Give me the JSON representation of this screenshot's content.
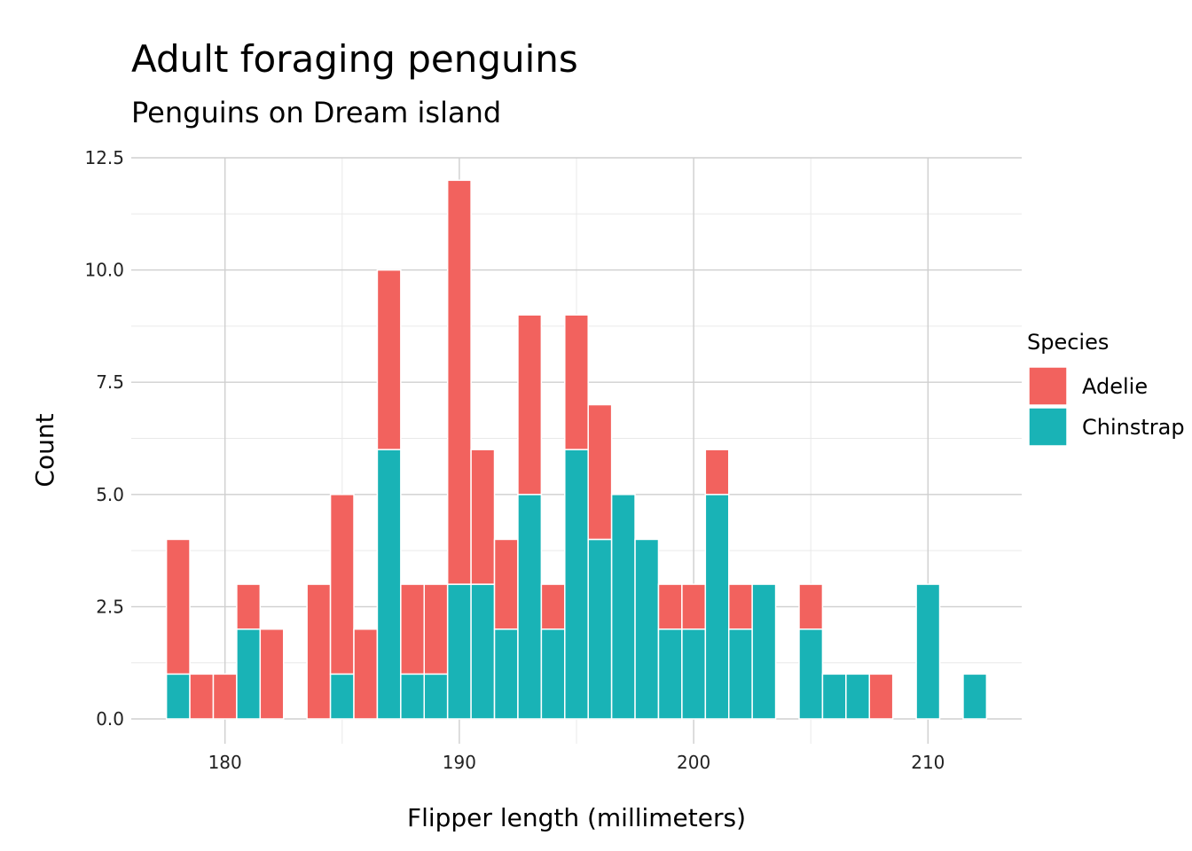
{
  "chart_data": {
    "type": "bar",
    "stacked": true,
    "title": "Adult foraging penguins",
    "subtitle": "Penguins on Dream island",
    "xlabel": "Flipper length (millimeters)",
    "ylabel": "Count",
    "xlim": [
      176,
      214
    ],
    "ylim": [
      0,
      12.5
    ],
    "x_ticks": [
      180,
      190,
      200,
      210
    ],
    "x_tick_labels": [
      "180",
      "190",
      "200",
      "210"
    ],
    "y_ticks": [
      0,
      2.5,
      5,
      7.5,
      10,
      12.5
    ],
    "y_tick_labels": [
      "0.0",
      "2.5",
      "5.0",
      "7.5",
      "10.0",
      "12.5"
    ],
    "grid": true,
    "legend": {
      "title": "Species",
      "placement": "right"
    },
    "x": [
      178,
      179,
      180,
      181,
      182,
      184,
      185,
      186,
      187,
      188,
      189,
      190,
      191,
      192,
      193,
      194,
      195,
      196,
      197,
      198,
      199,
      200,
      201,
      202,
      203,
      205,
      206,
      207,
      208,
      210,
      212
    ],
    "series": [
      {
        "name": "Chinstrap",
        "color": "#19B3B6",
        "values": [
          1,
          0,
          0,
          2,
          0,
          0,
          1,
          0,
          6,
          1,
          1,
          3,
          3,
          2,
          5,
          2,
          6,
          4,
          5,
          4,
          2,
          2,
          5,
          2,
          3,
          2,
          1,
          1,
          0,
          3,
          1
        ]
      },
      {
        "name": "Adelie",
        "color": "#F2625E",
        "values": [
          3,
          1,
          1,
          1,
          2,
          3,
          4,
          2,
          4,
          2,
          2,
          9,
          3,
          2,
          4,
          1,
          3,
          3,
          0,
          0,
          1,
          1,
          1,
          1,
          0,
          1,
          0,
          0,
          1,
          0,
          0
        ]
      }
    ],
    "legend_order": [
      "Adelie",
      "Chinstrap"
    ]
  }
}
